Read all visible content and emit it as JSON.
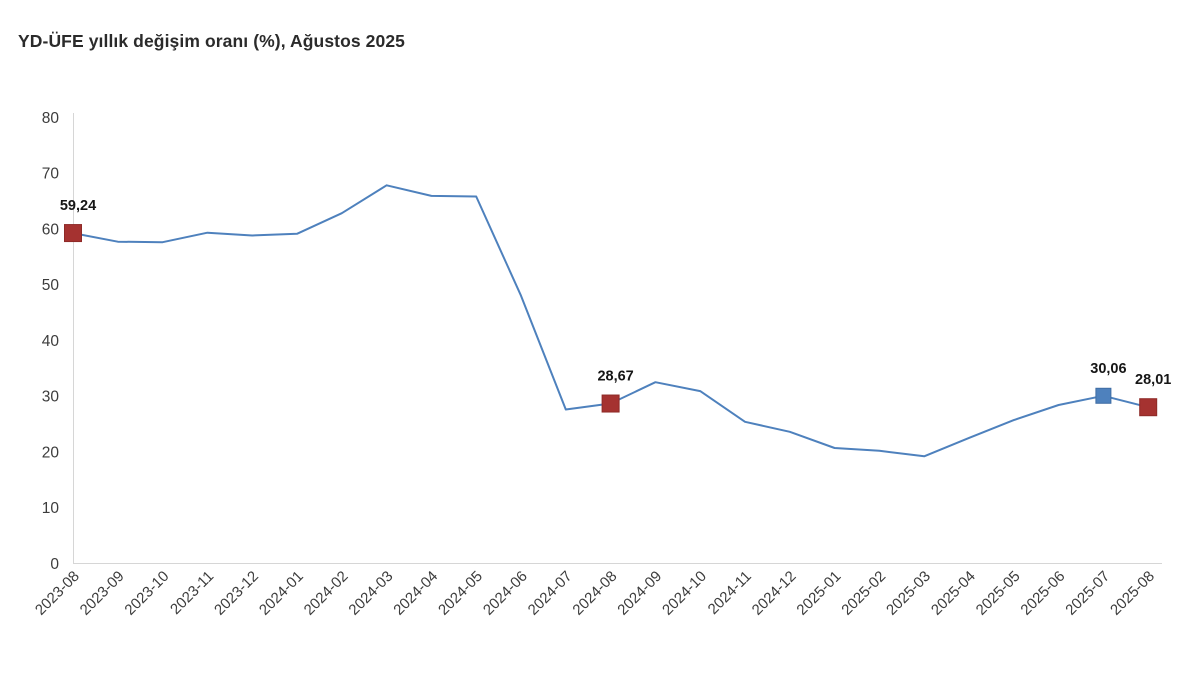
{
  "title": "YD-ÜFE yıllık değişim oranı (%), Ağustos 2025",
  "colors": {
    "line": "#4e81bd",
    "marker_red": "#a53230",
    "marker_blue": "#4e81bd",
    "axis_line": "#d6d6d6",
    "tick_text": "#3c3c3c",
    "title_text": "#2b2b2b",
    "label_text": "#161616",
    "background": "#ffffff"
  },
  "chart_data": {
    "type": "line",
    "title": "YD-ÜFE yıllık değişim oranı (%), Ağustos 2025",
    "xlabel": "",
    "ylabel": "",
    "x": [
      "2023-08",
      "2023-09",
      "2023-10",
      "2023-11",
      "2023-12",
      "2024-01",
      "2024-02",
      "2024-03",
      "2024-04",
      "2024-05",
      "2024-06",
      "2024-07",
      "2024-08",
      "2024-09",
      "2024-10",
      "2024-11",
      "2024-12",
      "2025-01",
      "2025-02",
      "2025-03",
      "2025-04",
      "2025-05",
      "2025-06",
      "2025-07",
      "2025-08"
    ],
    "values": [
      59.24,
      57.7,
      57.6,
      59.3,
      58.8,
      59.1,
      62.8,
      67.8,
      65.9,
      65.8,
      48.0,
      27.6,
      28.67,
      32.5,
      30.9,
      25.4,
      23.6,
      20.7,
      20.2,
      19.2,
      22.5,
      25.7,
      28.4,
      30.06,
      28.01
    ],
    "ylim": [
      0,
      80
    ],
    "yticks": [
      0,
      10,
      20,
      30,
      40,
      50,
      60,
      70,
      80
    ],
    "grid": false,
    "legend": false,
    "x_tick_rotation": -45,
    "annotations": [
      {
        "month": "2023-08",
        "label": "59,24",
        "marker_color": "red"
      },
      {
        "month": "2024-08",
        "label": "28,67",
        "marker_color": "red"
      },
      {
        "month": "2025-07",
        "label": "30,06",
        "marker_color": "blue"
      },
      {
        "month": "2025-08",
        "label": "28,01",
        "marker_color": "red"
      }
    ]
  }
}
